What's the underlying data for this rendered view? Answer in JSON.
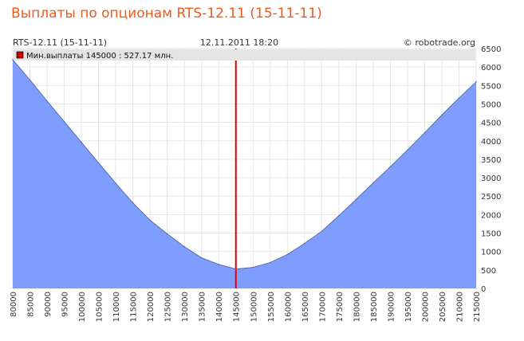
{
  "page": {
    "title": "Выплаты по опционам RTS-12.11 (15-11-11)"
  },
  "header": {
    "left": "RTS-12.11 (15-11-11)",
    "center": "12.11.2011 18:20",
    "right": "© robotrade.org"
  },
  "legend": {
    "text": "Мин.выплаты 145000 : 527.17 млн."
  },
  "colors": {
    "title": "#f05a1a",
    "area_fill": "#7f9cff",
    "area_stroke": "#5a6fb0",
    "marker_line": "#e00000",
    "legend_swatch": "#cc0000"
  },
  "chart_data": {
    "type": "area",
    "title": "Выплаты по опционам RTS-12.11 (15-11-11)",
    "xlabel": "",
    "ylabel": "",
    "x": [
      80000,
      85000,
      90000,
      95000,
      100000,
      105000,
      110000,
      115000,
      120000,
      125000,
      130000,
      135000,
      140000,
      145000,
      150000,
      155000,
      160000,
      165000,
      170000,
      175000,
      180000,
      185000,
      190000,
      195000,
      200000,
      205000,
      210000,
      215000
    ],
    "y": [
      6200,
      5650,
      5080,
      4520,
      3960,
      3400,
      2850,
      2320,
      1850,
      1480,
      1130,
      830,
      650,
      527,
      570,
      700,
      920,
      1220,
      1550,
      1970,
      2410,
      2860,
      3300,
      3750,
      4220,
      4700,
      5160,
      5600
    ],
    "xlim": [
      80000,
      215000
    ],
    "ylim": [
      0,
      6500
    ],
    "x_ticks": [
      80000,
      85000,
      90000,
      95000,
      100000,
      105000,
      110000,
      115000,
      120000,
      125000,
      130000,
      135000,
      140000,
      145000,
      150000,
      155000,
      160000,
      165000,
      170000,
      175000,
      180000,
      185000,
      190000,
      195000,
      200000,
      205000,
      210000,
      215000
    ],
    "y_ticks": [
      0,
      500,
      1000,
      1500,
      2000,
      2500,
      3000,
      3500,
      4000,
      4500,
      5000,
      5500,
      6000,
      6500
    ],
    "marker_x": 145000,
    "legend": [
      "Мин.выплаты 145000 : 527.17 млн."
    ],
    "legend_position": "top-left",
    "grid": true
  }
}
